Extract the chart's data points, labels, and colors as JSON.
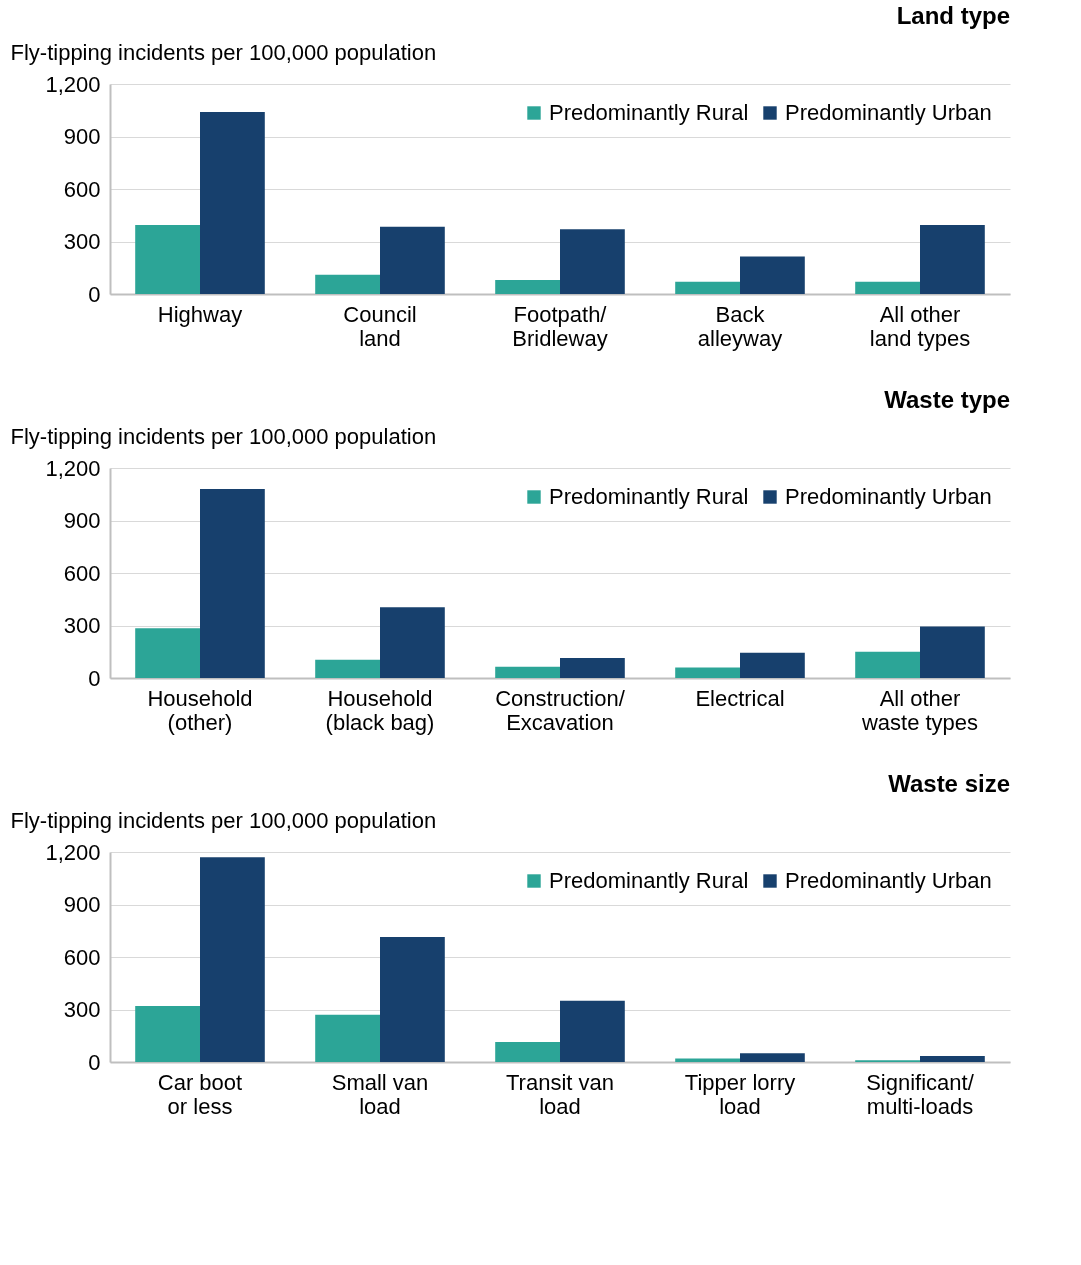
{
  "chart_data": [
    {
      "type": "bar",
      "title": "Land type",
      "ylabel": "Fly-tipping incidents per 100,000 population",
      "categories": [
        "Highway",
        "Council\nland",
        "Footpath/\nBridleway",
        "Back\nalleyway",
        "All other\nland types"
      ],
      "series": [
        {
          "name": "Predominantly Rural",
          "color": "#2ca597",
          "values": [
            395,
            110,
            80,
            70,
            70
          ]
        },
        {
          "name": "Predominantly Urban",
          "color": "#17406d",
          "values": [
            1040,
            385,
            370,
            215,
            395
          ]
        }
      ],
      "ylim": [
        0,
        1200
      ],
      "yticks": [
        {
          "value": 0,
          "label": "0"
        },
        {
          "value": 300,
          "label": "300"
        },
        {
          "value": 600,
          "label": "600"
        },
        {
          "value": 900,
          "label": "900"
        },
        {
          "value": 1200,
          "label": "1,200"
        }
      ],
      "grid": "y",
      "legend": "top right"
    },
    {
      "type": "bar",
      "title": "Waste type",
      "ylabel": "Fly-tipping incidents per 100,000 population",
      "categories": [
        "Household\n(other)",
        "Household\n(black bag)",
        "Construction/\nExcavation",
        "Electrical",
        "All other\nwaste types"
      ],
      "series": [
        {
          "name": "Predominantly Rural",
          "color": "#2ca597",
          "values": [
            285,
            105,
            65,
            60,
            150
          ]
        },
        {
          "name": "Predominantly Urban",
          "color": "#17406d",
          "values": [
            1080,
            405,
            115,
            145,
            295
          ]
        }
      ],
      "ylim": [
        0,
        1200
      ],
      "yticks": [
        {
          "value": 0,
          "label": "0"
        },
        {
          "value": 300,
          "label": "300"
        },
        {
          "value": 600,
          "label": "600"
        },
        {
          "value": 900,
          "label": "900"
        },
        {
          "value": 1200,
          "label": "1,200"
        }
      ],
      "grid": "y",
      "legend": "top right"
    },
    {
      "type": "bar",
      "title": "Waste size",
      "ylabel": "Fly-tipping incidents per 100,000 population",
      "categories": [
        "Car boot\nor less",
        "Small van\nload",
        "Transit van\nload",
        "Tipper lorry\nload",
        "Significant/\nmulti-loads"
      ],
      "series": [
        {
          "name": "Predominantly Rural",
          "color": "#2ca597",
          "values": [
            320,
            270,
            115,
            20,
            10
          ]
        },
        {
          "name": "Predominantly Urban",
          "color": "#17406d",
          "values": [
            1170,
            715,
            350,
            50,
            35
          ]
        }
      ],
      "ylim": [
        0,
        1200
      ],
      "yticks": [
        {
          "value": 0,
          "label": "0"
        },
        {
          "value": 300,
          "label": "300"
        },
        {
          "value": 600,
          "label": "600"
        },
        {
          "value": 900,
          "label": "900"
        },
        {
          "value": 1200,
          "label": "1,200"
        }
      ],
      "grid": "y",
      "legend": "top right"
    }
  ]
}
